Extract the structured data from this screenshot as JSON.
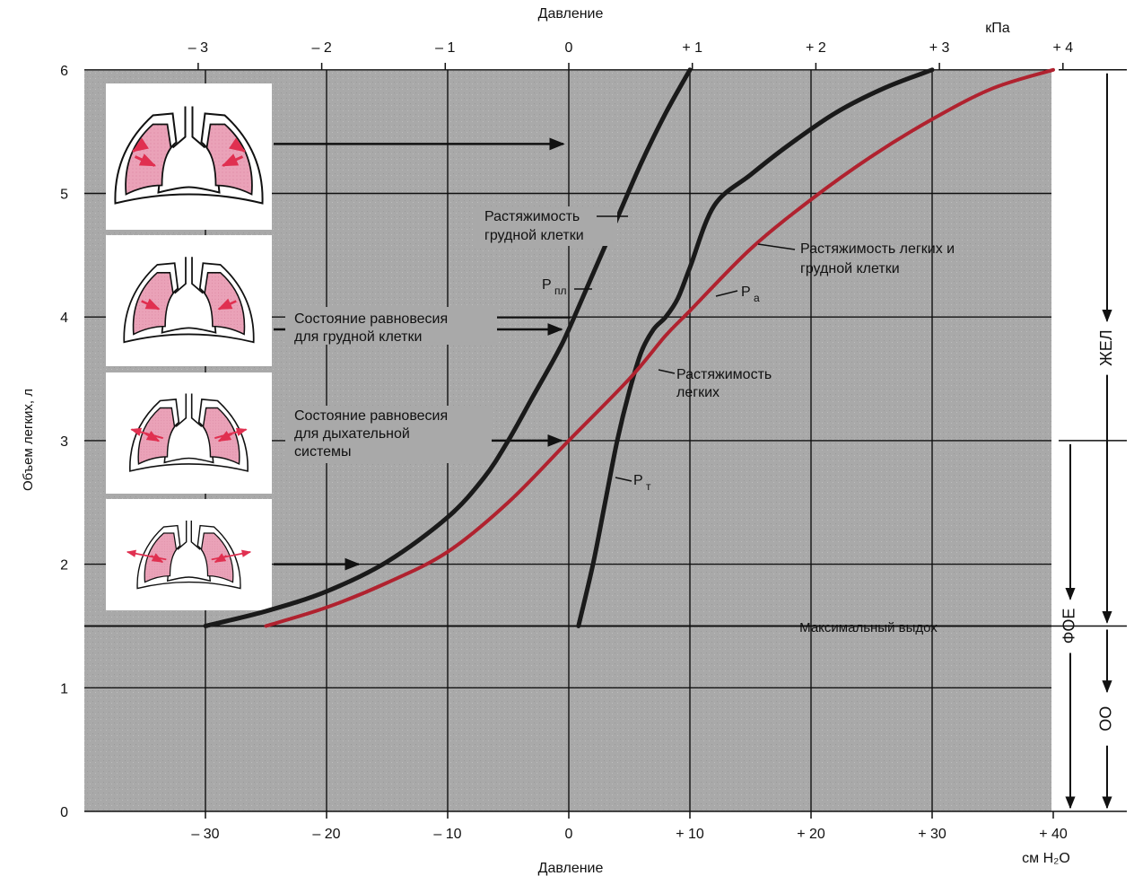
{
  "chart_data": {
    "type": "line",
    "top_axis": {
      "title": "Давление",
      "unit": "кПа",
      "ticks": [
        {
          "v": -3,
          "label": "– 3"
        },
        {
          "v": -2,
          "label": "– 2"
        },
        {
          "v": -1,
          "label": "– 1"
        },
        {
          "v": 0,
          "label": "0"
        },
        {
          "v": 1,
          "label": "+ 1"
        },
        {
          "v": 2,
          "label": "+ 2"
        },
        {
          "v": 3,
          "label": "+ 3"
        },
        {
          "v": 4,
          "label": "+ 4"
        }
      ]
    },
    "bottom_axis": {
      "title": "Давление",
      "unit": "см H₂O",
      "xlim": [
        -40,
        40
      ],
      "ticks": [
        {
          "v": -30,
          "label": "– 30"
        },
        {
          "v": -20,
          "label": "– 20"
        },
        {
          "v": -10,
          "label": "– 10"
        },
        {
          "v": 0,
          "label": "0"
        },
        {
          "v": 10,
          "label": "+ 10"
        },
        {
          "v": 20,
          "label": "+ 20"
        },
        {
          "v": 30,
          "label": "+ 30"
        },
        {
          "v": 40,
          "label": "+ 40"
        }
      ]
    },
    "y_axis": {
      "title": "Объем легких, л",
      "ylim": [
        0,
        6
      ],
      "ticks": [
        0,
        1,
        2,
        3,
        4,
        5,
        6
      ]
    },
    "max_exhale": {
      "y": 1.5,
      "label": "Максимальный выдох"
    },
    "series": [
      {
        "name": "Растяжимость грудной клетки",
        "color": "#1a1a1a",
        "points": [
          [
            -30,
            1.5
          ],
          [
            -25,
            1.62
          ],
          [
            -20,
            1.78
          ],
          [
            -15,
            2.02
          ],
          [
            -10,
            2.38
          ],
          [
            -7,
            2.7
          ],
          [
            -5,
            3.0
          ],
          [
            -3,
            3.35
          ],
          [
            -1,
            3.7
          ],
          [
            0,
            3.9
          ],
          [
            2,
            4.35
          ],
          [
            4,
            4.8
          ],
          [
            6,
            5.25
          ],
          [
            8,
            5.65
          ],
          [
            10,
            6.0
          ]
        ]
      },
      {
        "name": "Растяжимость легких",
        "color": "#1a1a1a",
        "points": [
          [
            0.8,
            1.5
          ],
          [
            2,
            2.0
          ],
          [
            3,
            2.5
          ],
          [
            4,
            3.0
          ],
          [
            5,
            3.4
          ],
          [
            6,
            3.72
          ],
          [
            7,
            3.9
          ],
          [
            8,
            4.0
          ],
          [
            9,
            4.15
          ],
          [
            10,
            4.4
          ],
          [
            12,
            4.9
          ],
          [
            15,
            5.15
          ],
          [
            18,
            5.38
          ],
          [
            22,
            5.65
          ],
          [
            26,
            5.85
          ],
          [
            30,
            6.0
          ]
        ]
      },
      {
        "name": "Растяжимость легких и грудной клетки",
        "color": "#b0222f",
        "points": [
          [
            -25,
            1.5
          ],
          [
            -20,
            1.65
          ],
          [
            -15,
            1.85
          ],
          [
            -10,
            2.1
          ],
          [
            -5,
            2.5
          ],
          [
            0,
            3.0
          ],
          [
            5,
            3.5
          ],
          [
            8,
            3.85
          ],
          [
            10,
            4.05
          ],
          [
            15,
            4.55
          ],
          [
            20,
            4.95
          ],
          [
            25,
            5.3
          ],
          [
            30,
            5.6
          ],
          [
            35,
            5.85
          ],
          [
            40,
            6.0
          ]
        ]
      }
    ],
    "annotations": {
      "pleural": "Растяжимость\nгрудной клетки",
      "p_pl": "P",
      "p_pl_sub": "пл",
      "p_a": "P",
      "p_a_sub": "a",
      "p_t": "P",
      "p_t_sub": "т",
      "lung_system": "Растяжимость легких и\nгрудной клетки",
      "lungs": "Растяжимость\nлегких",
      "eq_chest": "Состояние равновесия\nдля грудной  клетки",
      "eq_resp": "Состояние равновесия\nдля дыхательной\nсистемы"
    },
    "volume_brackets": [
      {
        "label": "ЖЕЛ",
        "from": 1.5,
        "to": 6
      },
      {
        "label": "ФОЕ",
        "from": 0,
        "to": 3
      },
      {
        "label": "ОО",
        "from": 0,
        "to": 1.5
      }
    ]
  },
  "colors": {
    "grid_bg": "#a9a9a9",
    "lung_fill": "#eaa2b8",
    "arrow_red": "#e03050"
  },
  "lung_icons": [
    "lungs-expanded-icon",
    "lungs-partial-icon",
    "lungs-equilibrium-icon",
    "lungs-compressed-icon"
  ]
}
